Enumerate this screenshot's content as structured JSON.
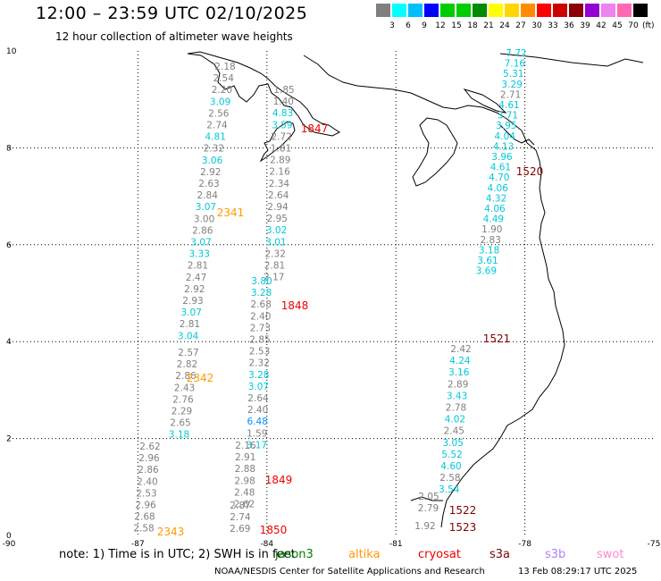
{
  "title": "12:00 – 23:59 UTC 02/10/2025",
  "subtitle": "12 hour collection of altimeter wave heights",
  "scale": {
    "unit": "(ft)",
    "labels": [
      "3",
      "6",
      "9",
      "12",
      "15",
      "18",
      "21",
      "24",
      "27",
      "30",
      "33",
      "36",
      "39",
      "42",
      "45",
      "70"
    ],
    "colors": [
      "#7f7f7f",
      "#00ffff",
      "#00bfff",
      "#0000ff",
      "#00cd00",
      "#00cd00",
      "#008b00",
      "#ffff00",
      "#ffd700",
      "#ff8c00",
      "#ff0000",
      "#cd0000",
      "#8b0000",
      "#9400d3",
      "#ee82ee",
      "#ff69b4",
      "#000000"
    ]
  },
  "axes": {
    "x_ticks": [
      "-90",
      "-87",
      "-84",
      "-81",
      "-78",
      "-75"
    ],
    "y_ticks": [
      "0",
      "2",
      "4",
      "6",
      "8",
      "10"
    ]
  },
  "tracks": [
    {
      "orbit": "2341",
      "color": "#ff9900",
      "mission": "altika",
      "values": [
        {
          "v": "2.18",
          "c": "#808080"
        },
        {
          "v": "2.54",
          "c": "#808080"
        },
        {
          "v": "2.20",
          "c": "#808080"
        },
        {
          "v": "3.09",
          "c": "#00c8d8"
        },
        {
          "v": "2.56",
          "c": "#808080"
        },
        {
          "v": "2.74",
          "c": "#808080"
        },
        {
          "v": "4.81",
          "c": "#00c8d8"
        },
        {
          "v": "2.32",
          "c": "#808080"
        },
        {
          "v": "3.06",
          "c": "#00c8d8"
        },
        {
          "v": "2.92",
          "c": "#808080"
        },
        {
          "v": "2.63",
          "c": "#808080"
        },
        {
          "v": "2.84",
          "c": "#808080"
        },
        {
          "v": "3.07",
          "c": "#00c8d8"
        },
        {
          "v": "3.00",
          "c": "#808080"
        },
        {
          "v": "2.86",
          "c": "#808080"
        },
        {
          "v": "3.07",
          "c": "#00c8d8"
        },
        {
          "v": "3.33",
          "c": "#00c8d8"
        },
        {
          "v": "2.81",
          "c": "#808080"
        },
        {
          "v": "2.47",
          "c": "#808080"
        },
        {
          "v": "2.92",
          "c": "#808080"
        },
        {
          "v": "2.93",
          "c": "#808080"
        },
        {
          "v": "3.07",
          "c": "#00c8d8"
        },
        {
          "v": "2.81",
          "c": "#808080"
        },
        {
          "v": "3.04",
          "c": "#00c8d8"
        }
      ]
    },
    {
      "orbit": "2342",
      "color": "#ff9900",
      "mission": "altika",
      "values": [
        {
          "v": "2.57",
          "c": "#808080"
        },
        {
          "v": "2.82",
          "c": "#808080"
        },
        {
          "v": "2.86",
          "c": "#808080"
        },
        {
          "v": "2.43",
          "c": "#808080"
        },
        {
          "v": "2.76",
          "c": "#808080"
        },
        {
          "v": "2.29",
          "c": "#808080"
        },
        {
          "v": "2.65",
          "c": "#808080"
        },
        {
          "v": "3.18",
          "c": "#00c8d8"
        }
      ]
    },
    {
      "orbit": "2343",
      "color": "#ff9900",
      "mission": "altika",
      "values": [
        {
          "v": "2.62",
          "c": "#808080"
        },
        {
          "v": "2.96",
          "c": "#808080"
        },
        {
          "v": "2.86",
          "c": "#808080"
        },
        {
          "v": "2.40",
          "c": "#808080"
        },
        {
          "v": "2.53",
          "c": "#808080"
        },
        {
          "v": "2.96",
          "c": "#808080"
        },
        {
          "v": "2.68",
          "c": "#808080"
        },
        {
          "v": "2.58",
          "c": "#808080"
        }
      ]
    },
    {
      "orbit": "1847",
      "color": "#ee0000",
      "mission": "cryosat",
      "values": [
        {
          "v": "1.85",
          "c": "#808080"
        },
        {
          "v": "1.40",
          "c": "#808080"
        },
        {
          "v": "4.83",
          "c": "#00c8d8"
        },
        {
          "v": "3.59",
          "c": "#00c8d8"
        },
        {
          "v": "2.72",
          "c": "#808080"
        },
        {
          "v": "1.81",
          "c": "#808080"
        },
        {
          "v": "2.89",
          "c": "#808080"
        },
        {
          "v": "2.16",
          "c": "#808080"
        },
        {
          "v": "2.34",
          "c": "#808080"
        },
        {
          "v": "2.64",
          "c": "#808080"
        },
        {
          "v": "2.94",
          "c": "#808080"
        },
        {
          "v": "2.95",
          "c": "#808080"
        },
        {
          "v": "3.02",
          "c": "#00c8d8"
        },
        {
          "v": "3.01",
          "c": "#00c8d8"
        },
        {
          "v": "2.32",
          "c": "#808080"
        },
        {
          "v": "2.81",
          "c": "#808080"
        },
        {
          "v": "2.17",
          "c": "#808080"
        }
      ]
    },
    {
      "orbit": "1848",
      "color": "#ee0000",
      "mission": "cryosat",
      "values": [
        {
          "v": "3.80",
          "c": "#00c8d8"
        },
        {
          "v": "3.28",
          "c": "#00c8d8"
        },
        {
          "v": "2.68",
          "c": "#808080"
        },
        {
          "v": "2.40",
          "c": "#808080"
        },
        {
          "v": "2.73",
          "c": "#808080"
        },
        {
          "v": "2.85",
          "c": "#808080"
        },
        {
          "v": "2.53",
          "c": "#808080"
        },
        {
          "v": "2.32",
          "c": "#808080"
        },
        {
          "v": "3.28",
          "c": "#00c8d8"
        },
        {
          "v": "3.07",
          "c": "#00c8d8"
        },
        {
          "v": "2.64",
          "c": "#808080"
        },
        {
          "v": "2.40",
          "c": "#808080"
        },
        {
          "v": "6.48",
          "c": "#0090ff"
        },
        {
          "v": "1.59",
          "c": "#808080"
        },
        {
          "v": "3.17",
          "c": "#00c8d8"
        }
      ]
    },
    {
      "orbit": "1849",
      "color": "#ee0000",
      "mission": "cryosat",
      "values": [
        {
          "v": "2.16",
          "c": "#808080"
        },
        {
          "v": "2.91",
          "c": "#808080"
        },
        {
          "v": "2.88",
          "c": "#808080"
        },
        {
          "v": "2.98",
          "c": "#808080"
        },
        {
          "v": "2.48",
          "c": "#808080"
        },
        {
          "v": "2.62",
          "c": "#808080"
        }
      ]
    },
    {
      "orbit": "1850",
      "color": "#ee0000",
      "mission": "cryosat",
      "values": [
        {
          "v": "2.87",
          "c": "#808080"
        },
        {
          "v": "2.74",
          "c": "#808080"
        },
        {
          "v": "2.69",
          "c": "#808080"
        }
      ]
    },
    {
      "orbit": "1520",
      "color": "#800000",
      "mission": "s3a",
      "values": [
        {
          "v": "7.72",
          "c": "#00c8d8"
        },
        {
          "v": "7.16",
          "c": "#00c8d8"
        },
        {
          "v": "5.31",
          "c": "#00c8d8"
        },
        {
          "v": "3.29",
          "c": "#00c8d8"
        },
        {
          "v": "2.71",
          "c": "#808080"
        },
        {
          "v": "4.61",
          "c": "#00c8d8"
        },
        {
          "v": "3.71",
          "c": "#00c8d8"
        },
        {
          "v": "3.95",
          "c": "#00c8d8"
        },
        {
          "v": "4.04",
          "c": "#00c8d8"
        },
        {
          "v": "4.13",
          "c": "#00c8d8"
        },
        {
          "v": "3.96",
          "c": "#00c8d8"
        },
        {
          "v": "4.61",
          "c": "#00c8d8"
        },
        {
          "v": "4.70",
          "c": "#00c8d8"
        },
        {
          "v": "4.06",
          "c": "#00c8d8"
        },
        {
          "v": "4.32",
          "c": "#00c8d8"
        },
        {
          "v": "4.06",
          "c": "#00c8d8"
        },
        {
          "v": "4.49",
          "c": "#00c8d8"
        },
        {
          "v": "1.90",
          "c": "#808080"
        },
        {
          "v": "2.83",
          "c": "#808080"
        },
        {
          "v": "3.18",
          "c": "#00c8d8"
        },
        {
          "v": "3.61",
          "c": "#00c8d8"
        },
        {
          "v": "3.69",
          "c": "#00c8d8"
        }
      ]
    },
    {
      "orbit": "1521",
      "color": "#800000",
      "mission": "s3a",
      "values": [
        {
          "v": "2.42",
          "c": "#808080"
        },
        {
          "v": "4.24",
          "c": "#00c8d8"
        },
        {
          "v": "3.16",
          "c": "#00c8d8"
        },
        {
          "v": "2.89",
          "c": "#808080"
        },
        {
          "v": "3.43",
          "c": "#00c8d8"
        },
        {
          "v": "2.78",
          "c": "#808080"
        },
        {
          "v": "4.02",
          "c": "#00c8d8"
        },
        {
          "v": "2.45",
          "c": "#808080"
        },
        {
          "v": "3.05",
          "c": "#00c8d8"
        },
        {
          "v": "5.52",
          "c": "#00c8d8"
        },
        {
          "v": "4.60",
          "c": "#00c8d8"
        },
        {
          "v": "2.58",
          "c": "#808080"
        },
        {
          "v": "3.54",
          "c": "#00c8d8"
        }
      ]
    },
    {
      "orbit": "1522",
      "color": "#800000",
      "mission": "s3a",
      "values": [
        {
          "v": "2.05",
          "c": "#808080"
        },
        {
          "v": "2.79",
          "c": "#808080"
        }
      ]
    },
    {
      "orbit": "1523",
      "color": "#800000",
      "mission": "s3a",
      "values": [
        {
          "v": "1.92",
          "c": "#808080"
        }
      ]
    }
  ],
  "note": "note:  1) Time is in UTC;  2) SWH is in feet",
  "missions": [
    {
      "name": "jason3",
      "color": "#008000"
    },
    {
      "name": "altika",
      "color": "#ff9900"
    },
    {
      "name": "cryosat",
      "color": "#ee0000"
    },
    {
      "name": "s3a",
      "color": "#800000"
    },
    {
      "name": "s3b",
      "color": "#b080ff"
    },
    {
      "name": "swot",
      "color": "#ff88cc"
    }
  ],
  "credit": "NOAA/NESDIS Center for Satellite Applications and Research",
  "timestamp": "13 Feb 08:29:17 UTC 2025"
}
